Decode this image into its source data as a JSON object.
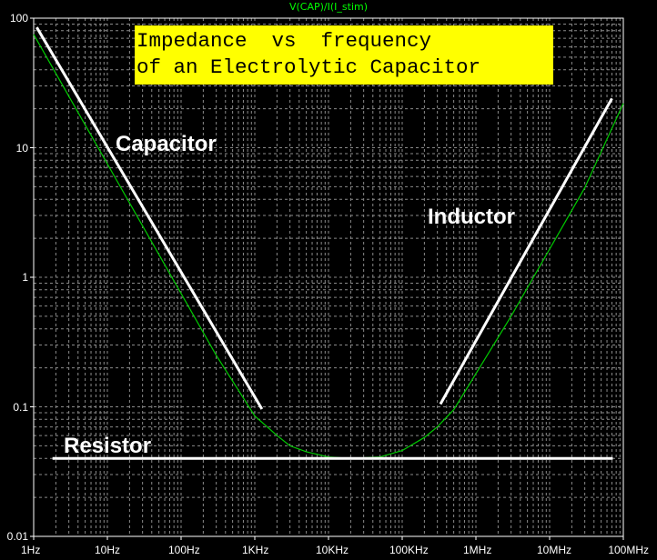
{
  "chart_data": {
    "type": "line",
    "title": "V(CAP)/I(I_stim)",
    "xscale": "log",
    "yscale": "log",
    "xlim": [
      1,
      100000000
    ],
    "ylim": [
      0.01,
      100
    ],
    "grid": true,
    "x_ticks": [
      {
        "value": 1,
        "label": "1Hz"
      },
      {
        "value": 10,
        "label": "10Hz"
      },
      {
        "value": 100,
        "label": "100Hz"
      },
      {
        "value": 1000,
        "label": "1KHz"
      },
      {
        "value": 10000,
        "label": "10KHz"
      },
      {
        "value": 100000,
        "label": "100KHz"
      },
      {
        "value": 1000000,
        "label": "1MHz"
      },
      {
        "value": 10000000,
        "label": "10MHz"
      },
      {
        "value": 100000000,
        "label": "100MHz"
      }
    ],
    "y_ticks": [
      {
        "value": 100,
        "label": "100"
      },
      {
        "value": 10,
        "label": "10"
      },
      {
        "value": 1,
        "label": "1"
      },
      {
        "value": 0.1,
        "label": "0.1"
      },
      {
        "value": 0.01,
        "label": "0.01"
      }
    ],
    "series": [
      {
        "color": "#00cc00",
        "x": [
          1,
          3,
          10,
          30,
          100,
          300,
          1000,
          2000,
          3000,
          5000,
          10000,
          20000,
          50000,
          100000,
          200000,
          300000,
          500000,
          1000000,
          3000000,
          10000000,
          30000000,
          100000000
        ],
        "y": [
          75,
          25,
          7.5,
          2.5,
          0.75,
          0.25,
          0.085,
          0.06,
          0.05,
          0.045,
          0.041,
          0.04,
          0.041,
          0.046,
          0.058,
          0.07,
          0.095,
          0.18,
          0.5,
          1.65,
          4.9,
          22
        ]
      }
    ],
    "annotations": {
      "banner_line1": "Impedance  vs  frequency",
      "banner_line2": "of an Electrolytic Capacitor",
      "capacitor_label": "Capacitor",
      "inductor_label": "Inductor",
      "resistor_label": "Resistor"
    },
    "asymptotes": [
      {
        "name": "capacitor",
        "x": [
          1.1,
          1250
        ],
        "y": [
          85,
          0.096
        ]
      },
      {
        "name": "inductor",
        "x": [
          330000,
          70000000
        ],
        "y": [
          0.105,
          24
        ]
      },
      {
        "name": "resistor",
        "x": [
          1.8,
          72000000
        ],
        "y": [
          0.04,
          0.04
        ]
      }
    ],
    "colors": {
      "background": "#000000",
      "trace": "#00cc00",
      "title": "#00ff00",
      "banner": "#ffff00",
      "axis": "#ffffff",
      "grid": "#8a8a8a"
    }
  }
}
